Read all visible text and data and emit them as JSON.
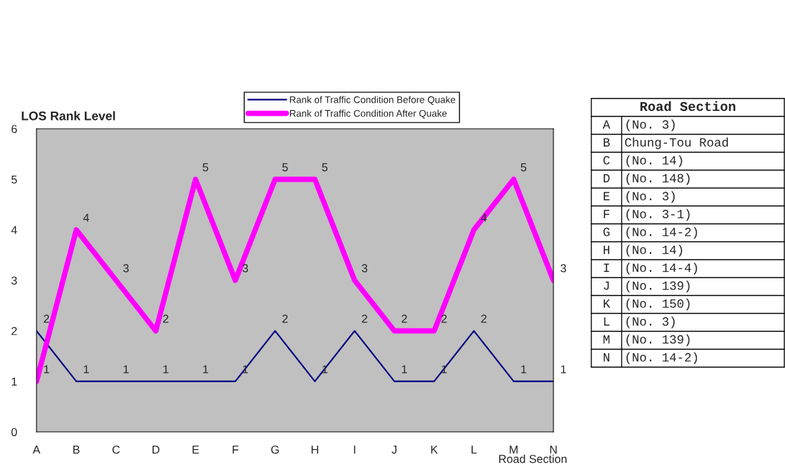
{
  "chart_data": {
    "type": "line",
    "categories": [
      "A",
      "B",
      "C",
      "D",
      "E",
      "F",
      "G",
      "H",
      "I",
      "J",
      "K",
      "L",
      "M",
      "N"
    ],
    "series": [
      {
        "name": "Rank of Traffic Condition Before Quake",
        "color": "#000080",
        "values": [
          2,
          1,
          1,
          1,
          1,
          1,
          2,
          1,
          2,
          1,
          1,
          2,
          1,
          1
        ]
      },
      {
        "name": "Rank of Traffic Condition After Quake",
        "color": "#ff00ff",
        "values": [
          1,
          4,
          3,
          2,
          5,
          3,
          5,
          5,
          3,
          2,
          2,
          4,
          5,
          3
        ]
      }
    ],
    "ylabel": "LOS Rank Level",
    "xlabel": "Road Section",
    "ylim": [
      0,
      6
    ],
    "yticks": [
      0,
      1,
      2,
      3,
      4,
      5,
      6
    ],
    "data_labels": true,
    "legend": "top",
    "grid": false,
    "marker": "none",
    "line_style": "solid",
    "annotations": [
      "Road Section",
      "A",
      "(No. 3)",
      "B",
      "Chung-Tou Road",
      "C",
      "(No. 14)",
      "D",
      "(No. 148)",
      "E",
      "(No. 3)",
      "F",
      "(No. 3-1)",
      "G",
      "(No. 14-2)",
      "H",
      "(No. 14)",
      "I",
      "(No. 14-4)",
      "J",
      "(No. 139)",
      "K",
      "(No. 150)",
      "L",
      "(No. 3)",
      "M",
      "(No. 139)",
      "N",
      "(No. 14-2)"
    ]
  }
}
